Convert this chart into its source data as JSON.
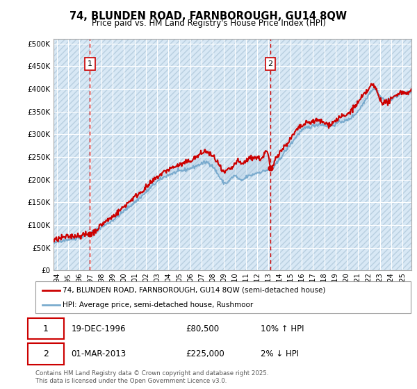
{
  "title": "74, BLUNDEN ROAD, FARNBOROUGH, GU14 8QW",
  "subtitle": "Price paid vs. HM Land Registry's House Price Index (HPI)",
  "ytick_values": [
    0,
    50000,
    100000,
    150000,
    200000,
    250000,
    300000,
    350000,
    400000,
    450000,
    500000
  ],
  "ylim": [
    0,
    510000
  ],
  "xlim_start": 1993.7,
  "xlim_end": 2025.8,
  "background_color": "#d8e8f5",
  "hatch_color": "#b8cfe0",
  "grid_color": "#ffffff",
  "red_line_color": "#cc0000",
  "blue_line_color": "#7aabce",
  "fill_color": "#aac8e0",
  "vline_color": "#cc0000",
  "marker1_x": 1996.97,
  "marker2_x": 2013.17,
  "marker1_label": "1",
  "marker2_label": "2",
  "legend_red": "74, BLUNDEN ROAD, FARNBOROUGH, GU14 8QW (semi-detached house)",
  "legend_blue": "HPI: Average price, semi-detached house, Rushmoor",
  "annotation1_date": "19-DEC-1996",
  "annotation1_price": "£80,500",
  "annotation1_hpi": "10% ↑ HPI",
  "annotation2_date": "01-MAR-2013",
  "annotation2_price": "£225,000",
  "annotation2_hpi": "2% ↓ HPI",
  "footnote": "Contains HM Land Registry data © Crown copyright and database right 2025.\nThis data is licensed under the Open Government Licence v3.0.",
  "xtick_years": [
    1994,
    1995,
    1996,
    1997,
    1998,
    1999,
    2000,
    2001,
    2002,
    2003,
    2004,
    2005,
    2006,
    2007,
    2008,
    2009,
    2010,
    2011,
    2012,
    2013,
    2014,
    2015,
    2016,
    2017,
    2018,
    2019,
    2020,
    2021,
    2022,
    2023,
    2024,
    2025
  ]
}
